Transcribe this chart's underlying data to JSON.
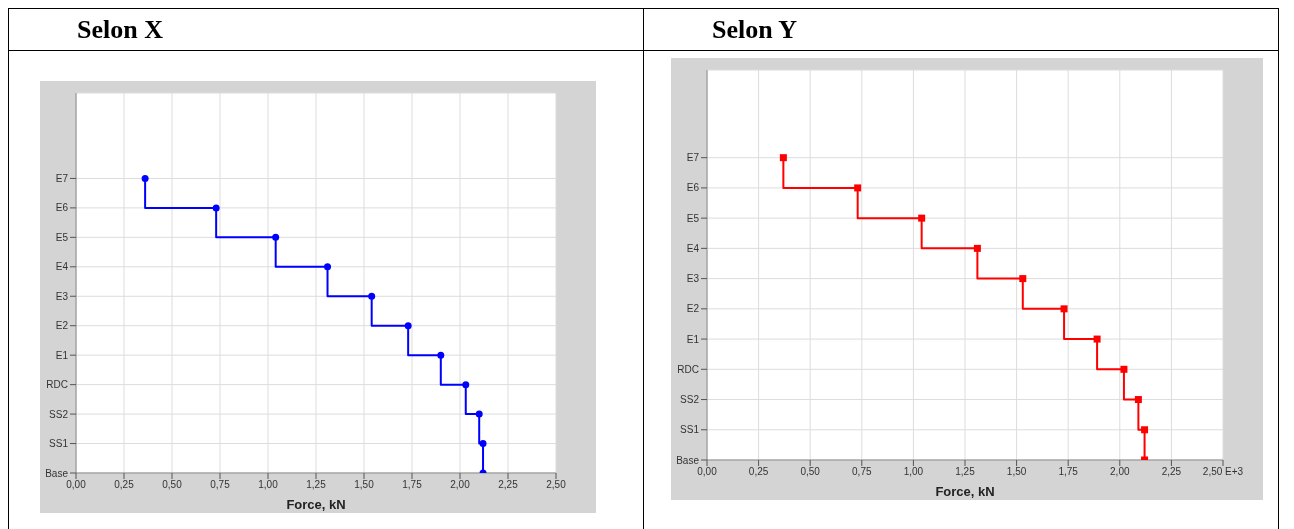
{
  "chart_data": [
    {
      "type": "step",
      "title": "Selon X",
      "xlabel": "Force, kN",
      "marker": "circle",
      "grid": true,
      "orientation": "horizontal",
      "xlim": [
        0,
        2.5
      ],
      "xticks": [
        {
          "value": 0,
          "label": "0,00"
        },
        {
          "value": 0.25,
          "label": "0,25"
        },
        {
          "value": 0.5,
          "label": "0,50"
        },
        {
          "value": 0.75,
          "label": "0,75"
        },
        {
          "value": 1,
          "label": "1,00"
        },
        {
          "value": 1.25,
          "label": "1,25"
        },
        {
          "value": 1.5,
          "label": "1,50"
        },
        {
          "value": 1.75,
          "label": "1,75"
        },
        {
          "value": 2,
          "label": "2,00"
        },
        {
          "value": 2.25,
          "label": "2,25"
        },
        {
          "value": 2.5,
          "label": "2,50"
        }
      ],
      "categories": [
        "E7",
        "E6",
        "E5",
        "E4",
        "E3",
        "E2",
        "E1",
        "RDC",
        "SS2",
        "SS1",
        "Base"
      ],
      "series": [
        {
          "color": "#0000ff",
          "values": [
            0.36,
            0.73,
            1.04,
            1.31,
            1.54,
            1.73,
            1.9,
            2.03,
            2.1,
            2.12,
            2.12
          ]
        }
      ]
    },
    {
      "type": "step",
      "title": "Selon Y",
      "xlabel": "Force, kN",
      "marker": "square",
      "grid": true,
      "orientation": "horizontal",
      "xlim": [
        0,
        2.5
      ],
      "xticks": [
        {
          "value": 0,
          "label": "0,00"
        },
        {
          "value": 0.25,
          "label": "0,25"
        },
        {
          "value": 0.5,
          "label": "0,50"
        },
        {
          "value": 0.75,
          "label": "0,75"
        },
        {
          "value": 1,
          "label": "1,00"
        },
        {
          "value": 1.25,
          "label": "1,25"
        },
        {
          "value": 1.5,
          "label": "1,50"
        },
        {
          "value": 1.75,
          "label": "1,75"
        },
        {
          "value": 2,
          "label": "2,00"
        },
        {
          "value": 2.25,
          "label": "2,25"
        },
        {
          "value": 2.5,
          "label": "2,50 E+3"
        }
      ],
      "categories": [
        "E7",
        "E6",
        "E5",
        "E4",
        "E3",
        "E2",
        "E1",
        "RDC",
        "SS2",
        "SS1",
        "Base"
      ],
      "series": [
        {
          "color": "#ff0000",
          "values": [
            0.37,
            0.73,
            1.04,
            1.31,
            1.53,
            1.73,
            1.89,
            2.02,
            2.09,
            2.12,
            2.12
          ]
        }
      ]
    }
  ]
}
